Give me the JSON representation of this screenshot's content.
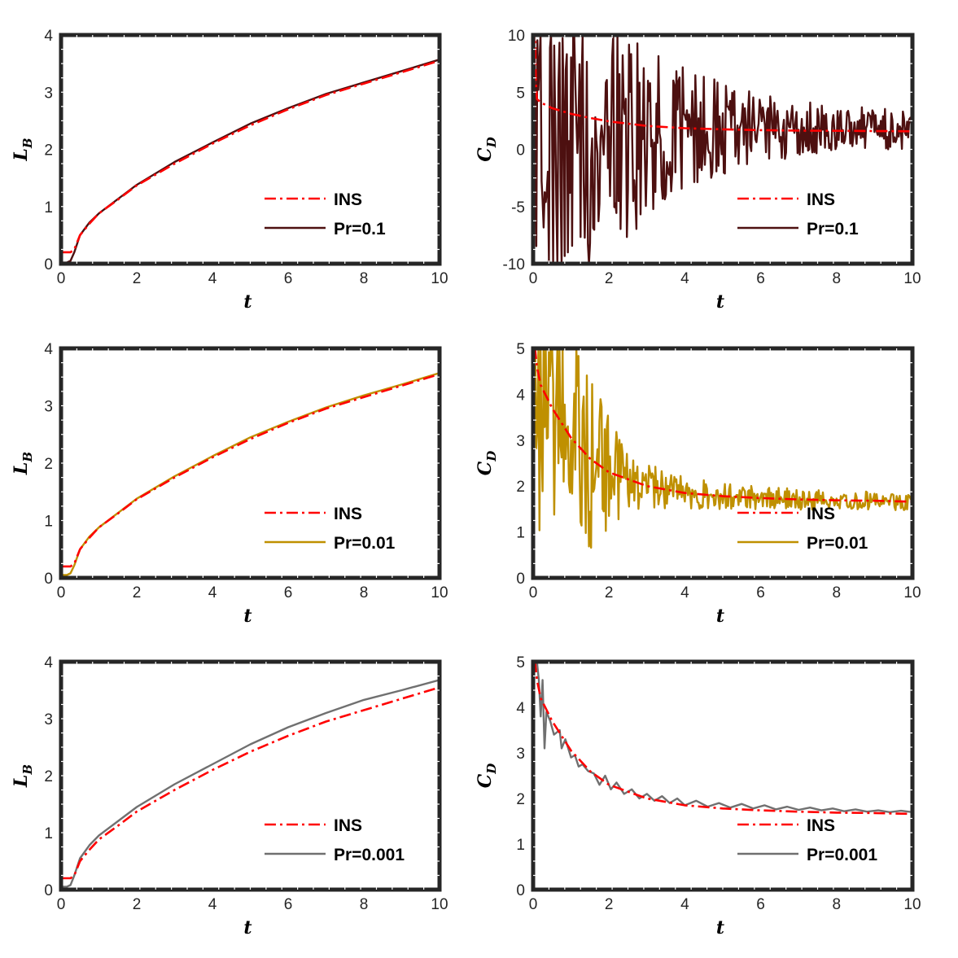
{
  "chart_data": [
    {
      "type": "line",
      "xlabel": "t",
      "ylabel": "L",
      "ylabel_sub": "B",
      "xlim": [
        0,
        10
      ],
      "ylim": [
        0,
        4
      ],
      "xticks": [
        "0",
        "2",
        "4",
        "6",
        "8",
        "10"
      ],
      "yticks": [
        "0",
        "1",
        "2",
        "3",
        "4"
      ],
      "legend_position": "lower-right",
      "series": [
        {
          "name": "INS",
          "style": "dashdot",
          "color": "#ff0000",
          "x": [
            0,
            0.25,
            0.35,
            0.5,
            0.75,
            1,
            1.5,
            2,
            3,
            4,
            5,
            6,
            7,
            8,
            9,
            10
          ],
          "y": [
            0.2,
            0.2,
            0.25,
            0.5,
            0.7,
            0.88,
            1.12,
            1.37,
            1.75,
            2.1,
            2.42,
            2.7,
            2.95,
            3.15,
            3.35,
            3.55
          ]
        },
        {
          "name": "Pr=0.1",
          "style": "solid",
          "color": "#4d1010",
          "x": [
            0,
            0.15,
            0.25,
            0.35,
            0.5,
            0.75,
            1,
            1.5,
            2,
            3,
            4,
            5,
            6,
            7,
            8,
            9,
            10
          ],
          "y": [
            0.02,
            0.02,
            0.05,
            0.2,
            0.5,
            0.72,
            0.88,
            1.13,
            1.38,
            1.78,
            2.12,
            2.45,
            2.72,
            2.97,
            3.17,
            3.37,
            3.57
          ]
        }
      ]
    },
    {
      "type": "line",
      "xlabel": "t",
      "ylabel": "C",
      "ylabel_sub": "D",
      "xlim": [
        0,
        10
      ],
      "ylim": [
        -10,
        10
      ],
      "xticks": [
        "0",
        "2",
        "4",
        "6",
        "8",
        "10"
      ],
      "yticks": [
        "-10",
        "-5",
        "0",
        "5",
        "10"
      ],
      "legend_position": "lower-right",
      "series": [
        {
          "name": "INS",
          "style": "dashdot",
          "color": "#ff0000",
          "x": [
            0.02,
            0.03,
            0.05,
            0.07,
            0.1,
            0.2,
            0.5,
            1,
            1.5,
            2,
            3,
            4,
            5,
            6,
            7,
            8,
            9,
            10
          ],
          "y": [
            -10,
            10,
            10,
            6,
            4.4,
            4.1,
            3.6,
            3.1,
            2.75,
            2.45,
            2.05,
            1.85,
            1.75,
            1.68,
            1.64,
            1.62,
            1.6,
            1.58
          ]
        },
        {
          "name": "Pr=0.1",
          "style": "solid",
          "color": "#4d1010",
          "noise": true,
          "amp_x": [
            0,
            0.5,
            1,
            2,
            3,
            4,
            5,
            6,
            8,
            10
          ],
          "amp": [
            14,
            14,
            13,
            11,
            8,
            5.5,
            4,
            3,
            2,
            1.8
          ],
          "base": 1.8
        }
      ]
    },
    {
      "type": "line",
      "xlabel": "t",
      "ylabel": "L",
      "ylabel_sub": "B",
      "xlim": [
        0,
        10
      ],
      "ylim": [
        0,
        4
      ],
      "xticks": [
        "0",
        "2",
        "4",
        "6",
        "8",
        "10"
      ],
      "yticks": [
        "0",
        "1",
        "2",
        "3",
        "4"
      ],
      "legend_position": "lower-right",
      "series": [
        {
          "name": "INS",
          "style": "dashdot",
          "color": "#ff0000",
          "x": [
            0,
            0.25,
            0.35,
            0.5,
            0.75,
            1,
            1.5,
            2,
            3,
            4,
            5,
            6,
            7,
            8,
            9,
            10
          ],
          "y": [
            0.2,
            0.2,
            0.25,
            0.5,
            0.7,
            0.88,
            1.12,
            1.37,
            1.75,
            2.1,
            2.42,
            2.7,
            2.95,
            3.15,
            3.35,
            3.55
          ]
        },
        {
          "name": "Pr=0.01",
          "style": "solid",
          "color": "#bf9000",
          "x": [
            0,
            0.15,
            0.25,
            0.35,
            0.5,
            0.75,
            1,
            1.5,
            2,
            3,
            4,
            5,
            6,
            7,
            8,
            9,
            10
          ],
          "y": [
            0.05,
            0.05,
            0.08,
            0.22,
            0.5,
            0.72,
            0.88,
            1.13,
            1.38,
            1.77,
            2.12,
            2.45,
            2.72,
            2.97,
            3.18,
            3.37,
            3.57
          ]
        }
      ]
    },
    {
      "type": "line",
      "xlabel": "t",
      "ylabel": "C",
      "ylabel_sub": "D",
      "xlim": [
        0,
        10
      ],
      "ylim": [
        0,
        5
      ],
      "xticks": [
        "0",
        "2",
        "4",
        "6",
        "8",
        "10"
      ],
      "yticks": [
        "0",
        "1",
        "2",
        "3",
        "4",
        "5"
      ],
      "legend_position": "lower-right",
      "series": [
        {
          "name": "INS",
          "style": "dashdot",
          "color": "#ff0000",
          "x": [
            0.03,
            0.05,
            0.1,
            0.2,
            0.5,
            1,
            1.5,
            2,
            3,
            4,
            5,
            6,
            7,
            8,
            9,
            10
          ],
          "y": [
            5,
            5,
            4.6,
            4.2,
            3.7,
            3.05,
            2.6,
            2.3,
            2.0,
            1.85,
            1.78,
            1.74,
            1.71,
            1.69,
            1.68,
            1.66
          ]
        },
        {
          "name": "Pr=0.01",
          "style": "solid",
          "color": "#bf9000",
          "noise": true,
          "amp_x": [
            0,
            0.5,
            1,
            1.5,
            2,
            3,
            4,
            6,
            8,
            10
          ],
          "amp": [
            3.5,
            3.2,
            2.8,
            2.0,
            1.2,
            0.5,
            0.35,
            0.25,
            0.2,
            0.2
          ],
          "base_follows_ins": true
        }
      ]
    },
    {
      "type": "line",
      "xlabel": "t",
      "ylabel": "L",
      "ylabel_sub": "B",
      "xlim": [
        0,
        10
      ],
      "ylim": [
        0,
        4
      ],
      "xticks": [
        "0",
        "2",
        "4",
        "6",
        "8",
        "10"
      ],
      "yticks": [
        "0",
        "1",
        "2",
        "3",
        "4"
      ],
      "legend_position": "lower-right",
      "series": [
        {
          "name": "INS",
          "style": "dashdot",
          "color": "#ff0000",
          "x": [
            0,
            0.25,
            0.35,
            0.5,
            0.75,
            1,
            1.5,
            2,
            3,
            4,
            5,
            6,
            7,
            8,
            9,
            10
          ],
          "y": [
            0.2,
            0.2,
            0.25,
            0.5,
            0.7,
            0.88,
            1.12,
            1.37,
            1.75,
            2.1,
            2.42,
            2.7,
            2.95,
            3.15,
            3.35,
            3.55
          ]
        },
        {
          "name": "Pr=0.001",
          "style": "solid",
          "color": "#707070",
          "x": [
            0,
            0.15,
            0.25,
            0.35,
            0.5,
            0.75,
            1,
            1.5,
            2,
            3,
            4,
            5,
            6,
            7,
            8,
            9,
            10
          ],
          "y": [
            0.05,
            0.05,
            0.08,
            0.25,
            0.55,
            0.78,
            0.95,
            1.2,
            1.45,
            1.85,
            2.2,
            2.55,
            2.85,
            3.1,
            3.33,
            3.5,
            3.68
          ]
        }
      ]
    },
    {
      "type": "line",
      "xlabel": "t",
      "ylabel": "C",
      "ylabel_sub": "D",
      "xlim": [
        0,
        10
      ],
      "ylim": [
        0,
        5
      ],
      "xticks": [
        "0",
        "2",
        "4",
        "6",
        "8",
        "10"
      ],
      "yticks": [
        "0",
        "1",
        "2",
        "3",
        "4",
        "5"
      ],
      "legend_position": "lower-right",
      "series": [
        {
          "name": "INS",
          "style": "dashdot",
          "color": "#ff0000",
          "x": [
            0.03,
            0.05,
            0.1,
            0.2,
            0.5,
            1,
            1.5,
            2,
            3,
            4,
            5,
            6,
            7,
            8,
            9,
            10
          ],
          "y": [
            5,
            5,
            4.6,
            4.2,
            3.7,
            3.05,
            2.6,
            2.3,
            2.0,
            1.85,
            1.78,
            1.74,
            1.71,
            1.69,
            1.68,
            1.66
          ]
        },
        {
          "name": "Pr=0.001",
          "style": "solid",
          "color": "#707070",
          "x": [
            0.1,
            0.15,
            0.2,
            0.25,
            0.3,
            0.35,
            0.45,
            0.55,
            0.7,
            0.75,
            0.85,
            1.0,
            1.1,
            1.2,
            1.3,
            1.45,
            1.6,
            1.75,
            1.9,
            2.05,
            2.2,
            2.4,
            2.6,
            2.8,
            3.0,
            3.2,
            3.4,
            3.6,
            3.8,
            4.0,
            4.3,
            4.6,
            4.9,
            5.2,
            5.5,
            5.8,
            6.1,
            6.4,
            6.7,
            7.0,
            7.3,
            7.6,
            7.9,
            8.2,
            8.5,
            8.8,
            9.1,
            9.4,
            9.7,
            10.0
          ],
          "y": [
            5.0,
            4.6,
            3.8,
            4.6,
            3.1,
            3.9,
            3.7,
            3.4,
            3.5,
            3.1,
            3.3,
            2.9,
            2.95,
            2.7,
            2.75,
            2.6,
            2.55,
            2.3,
            2.5,
            2.2,
            2.35,
            2.1,
            2.2,
            2.0,
            2.1,
            1.95,
            2.05,
            1.9,
            2.0,
            1.85,
            1.95,
            1.82,
            1.9,
            1.8,
            1.88,
            1.78,
            1.85,
            1.76,
            1.82,
            1.75,
            1.8,
            1.74,
            1.78,
            1.72,
            1.76,
            1.71,
            1.74,
            1.7,
            1.73,
            1.7
          ]
        }
      ]
    }
  ]
}
